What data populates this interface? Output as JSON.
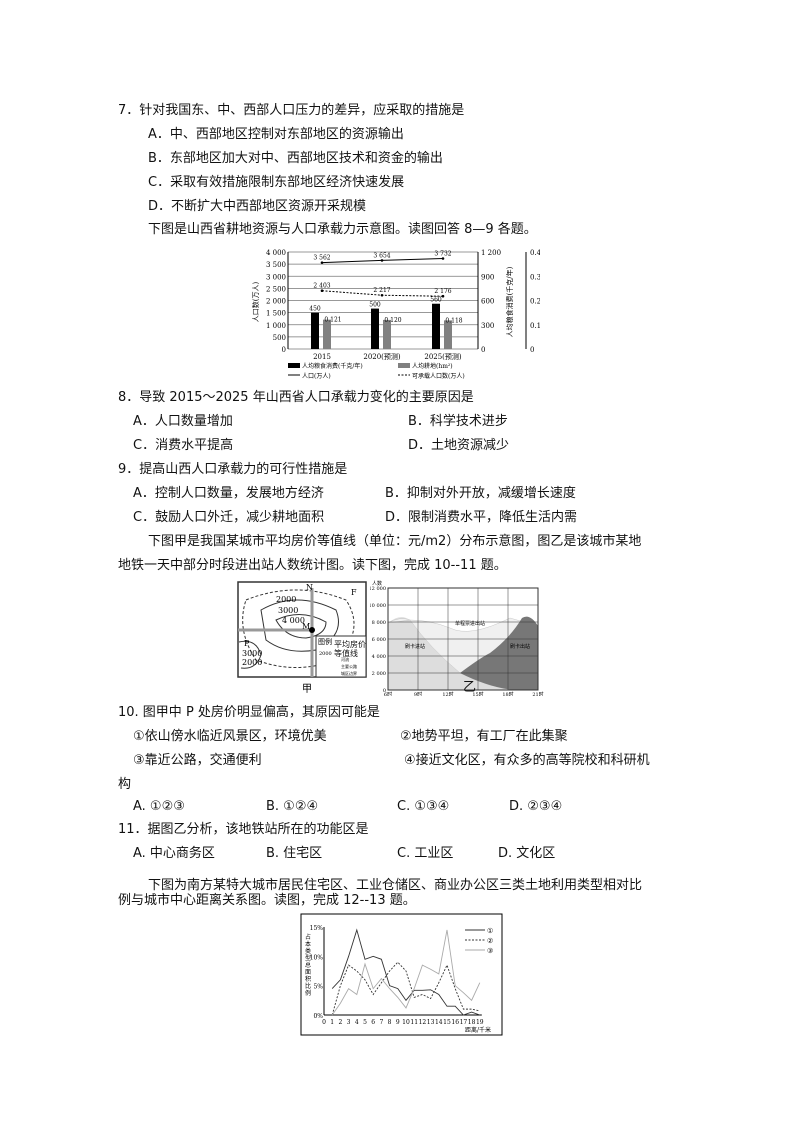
{
  "q7": {
    "stem": "7．针对我国东、中、西部人口压力的差异，应采取的措施是",
    "options": [
      "A．中、西部地区控制对东部地区的资源输出",
      "B．东部地区加大对中、西部地区技术和资金的输出",
      "C．采取有效措施限制东部地区经济快速发展",
      "D．不断扩大中西部地区资源开采规模"
    ]
  },
  "intro1": "下图是山西省耕地资源与人口承载力示意图。读图回答 8—9 各题。",
  "chart1": {
    "type": "bar",
    "categories": [
      "2015",
      "2020(预测)",
      "2025(预测)"
    ],
    "ylabel_left": "人口数(万人)",
    "ylabel_right1": "人均粮食消费(千克/年)",
    "ylabel_right2": "人均耕地(hm²)",
    "left_ticks": [
      "0",
      "500",
      "1 000",
      "1 500",
      "2 000",
      "2 500",
      "3 000",
      "3 500",
      "4 000"
    ],
    "right1_ticks": [
      "0",
      "300",
      "600",
      "900",
      "1 200"
    ],
    "right2_ticks": [
      "0",
      "0.1",
      "0.2",
      "0.3",
      "0.4"
    ],
    "series": [
      {
        "name": "人均粮食消费(千克/年)",
        "values": [
          450,
          500,
          560
        ],
        "labels": [
          "450",
          "500",
          "560"
        ],
        "color": "#000000"
      },
      {
        "name": "人均耕地(hm²)",
        "values": [
          0.121,
          0.12,
          0.118
        ],
        "labels": [
          "0.121",
          "0.120",
          "0.118"
        ],
        "color": "#808080"
      },
      {
        "name": "人口(万人)",
        "values": [
          3562,
          3654,
          3732
        ],
        "labels": [
          "3 562",
          "3 654",
          "3 732"
        ]
      },
      {
        "name": "可承载人口数(万人)",
        "values": [
          2403,
          2217,
          2176
        ],
        "labels": [
          "2 403",
          "2 217",
          "2 176"
        ]
      }
    ]
  },
  "q8": {
    "stem": "8．导致 2015～2025 年山西省人口承载力变化的主要原因是",
    "options": [
      "A．人口数量增加",
      "B．科学技术进步",
      "C．消费水平提高",
      "D．土地资源减少"
    ]
  },
  "q9": {
    "stem": "9．提高山西人口承载力的可行性措施是",
    "options": [
      "A．控制人口数量，发展地方经济",
      "B．抑制对外开放，减缓增长速度",
      "C．鼓励人口外迁，减少耕地面积",
      "D．限制消费水平，降低生活内需"
    ]
  },
  "intro2": [
    "下图甲是我国某城市平均房价等值线（单位：元/m2）分布示意图，图乙是该城市某地",
    "地铁一天中部分时段进出站人数统计图。读下图，完成 10--11 题。"
  ],
  "map": {
    "caption": "甲",
    "labels": [
      "2000",
      "3000",
      "4 000",
      "N",
      "F",
      "M",
      "P",
      "3000",
      "2000"
    ],
    "legend_title": "图例",
    "legend": [
      "平均房价等值线",
      "河流",
      "主要公路",
      "城区边界"
    ],
    "legend_value": "2000"
  },
  "chart2": {
    "type": "area",
    "caption": "乙",
    "ylabel": "人数",
    "y_ticks": [
      "0",
      "2 000",
      "4 000",
      "6 000",
      "8 000",
      "10 000",
      "12 000"
    ],
    "x_ticks": [
      "6时",
      "9时",
      "12时",
      "15时",
      "18时",
      "21时"
    ],
    "labels": [
      "刷卡进站",
      "单程票进出站",
      "刷卡出站"
    ]
  },
  "q10": {
    "stem": "10. 图甲中 P 处房价明显偏高，其原因可能是",
    "reasons": [
      "①依山傍水临近风景区，环境优美",
      "②地势平坦，有工厂在此集聚",
      "③靠近公路，交通便利",
      "④接近文化区，有众多的高等院校和科研机"
    ],
    "reason_cont": "构",
    "options": [
      "A. ①②③",
      "B. ①②④",
      "C. ①③④",
      "D. ②③④"
    ]
  },
  "q11": {
    "stem": "11．据图乙分析，该地铁站所在的功能区是",
    "options": [
      "A. 中心商务区",
      "B. 住宅区",
      "C. 工业区",
      "D. 文化区"
    ]
  },
  "intro3": [
    "下图为南方某特大城市居民住宅区、工业仓储区、商业办公区三类土地利用类型相对比",
    "例与城市中心距离关系图。读图，完成 12--13 题。"
  ],
  "chart3": {
    "type": "line",
    "ylabel": "占本类型总面积比例",
    "xlabel": "距离/千米",
    "y_ticks": [
      "0%",
      "5%",
      "10%",
      "15%"
    ],
    "x": [
      0,
      1,
      2,
      3,
      4,
      5,
      6,
      7,
      8,
      9,
      10,
      11,
      12,
      13,
      14,
      15,
      16,
      17,
      18,
      19
    ],
    "series": [
      {
        "name": "①",
        "values": [
          null,
          4.5,
          6,
          10,
          14.5,
          9.5,
          10,
          9.5,
          5,
          4.5,
          2.5,
          4.2,
          4.2,
          4.3,
          3.5,
          1.5,
          1.5,
          0,
          0.5,
          0
        ]
      },
      {
        "name": "②",
        "values": [
          null,
          0,
          5,
          8.5,
          7.5,
          6,
          3.5,
          5.5,
          7.5,
          9,
          7.5,
          3,
          3.5,
          2.8,
          5.5,
          8.5,
          4.5,
          1,
          1,
          0.7
        ]
      },
      {
        "name": "③",
        "values": [
          null,
          0,
          2,
          4.5,
          3.5,
          8.7,
          4.5,
          6.2,
          4.5,
          3,
          1.2,
          4.5,
          8.5,
          7.8,
          7,
          14.5,
          5,
          3.8,
          2.5,
          5.5
        ]
      }
    ]
  }
}
